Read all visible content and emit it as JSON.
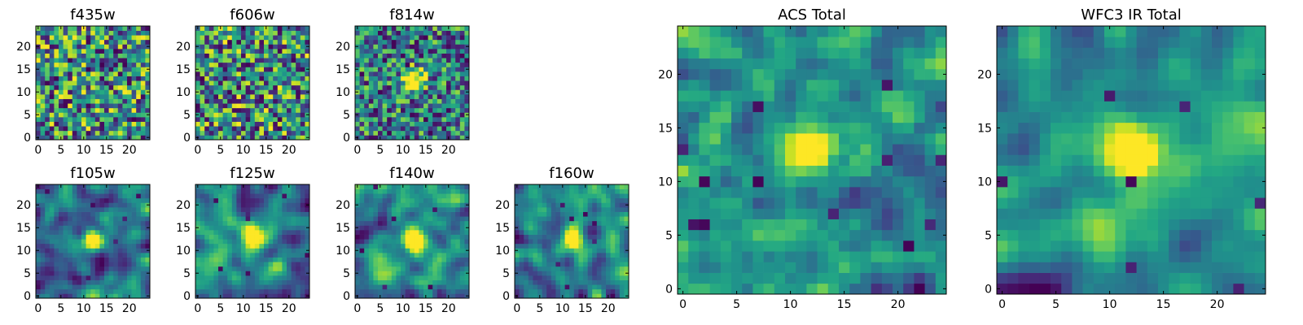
{
  "figure": {
    "colormap": "viridis",
    "colors": {
      "low": "#440154",
      "mid": "#21918c",
      "high": "#fde725"
    }
  },
  "chart_data": [
    {
      "type": "heatmap",
      "title": "f435w",
      "grid": [
        25,
        25
      ],
      "xlim": [
        0,
        24
      ],
      "ylim": [
        0,
        24
      ],
      "xticks": [
        0,
        5,
        10,
        15,
        20
      ],
      "yticks": [
        0,
        5,
        10,
        15,
        20
      ],
      "texture": "noisy",
      "bright_center": false,
      "seed": 11
    },
    {
      "type": "heatmap",
      "title": "f606w",
      "grid": [
        25,
        25
      ],
      "xlim": [
        0,
        24
      ],
      "ylim": [
        0,
        24
      ],
      "xticks": [
        0,
        5,
        10,
        15,
        20
      ],
      "yticks": [
        0,
        5,
        10,
        15,
        20
      ],
      "texture": "noisy",
      "bright_center": false,
      "seed": 23
    },
    {
      "type": "heatmap",
      "title": "f814w",
      "grid": [
        25,
        25
      ],
      "xlim": [
        0,
        24
      ],
      "ylim": [
        0,
        24
      ],
      "xticks": [
        0,
        5,
        10,
        15,
        20
      ],
      "yticks": [
        0,
        5,
        10,
        15,
        20
      ],
      "texture": "noisy",
      "bright_center": true,
      "seed": 37
    },
    {
      "type": "heatmap",
      "title": "f105w",
      "grid": [
        25,
        25
      ],
      "xlim": [
        0,
        24
      ],
      "ylim": [
        0,
        24
      ],
      "xticks": [
        0,
        5,
        10,
        15,
        20
      ],
      "yticks": [
        0,
        5,
        10,
        15,
        20
      ],
      "texture": "smooth",
      "bright_center": true,
      "seed": 41
    },
    {
      "type": "heatmap",
      "title": "f125w",
      "grid": [
        25,
        25
      ],
      "xlim": [
        0,
        24
      ],
      "ylim": [
        0,
        24
      ],
      "xticks": [
        0,
        5,
        10,
        15,
        20
      ],
      "yticks": [
        0,
        5,
        10,
        15,
        20
      ],
      "texture": "smooth",
      "bright_center": true,
      "seed": 53
    },
    {
      "type": "heatmap",
      "title": "f140w",
      "grid": [
        25,
        25
      ],
      "xlim": [
        0,
        24
      ],
      "ylim": [
        0,
        24
      ],
      "xticks": [
        0,
        5,
        10,
        15,
        20
      ],
      "yticks": [
        0,
        5,
        10,
        15,
        20
      ],
      "texture": "smooth",
      "bright_center": true,
      "seed": 67
    },
    {
      "type": "heatmap",
      "title": "f160w",
      "grid": [
        25,
        25
      ],
      "xlim": [
        0,
        24
      ],
      "ylim": [
        0,
        24
      ],
      "xticks": [
        0,
        5,
        10,
        15,
        20
      ],
      "yticks": [
        0,
        5,
        10,
        15,
        20
      ],
      "texture": "smooth",
      "bright_center": true,
      "seed": 79
    },
    {
      "type": "heatmap",
      "title": "ACS Total",
      "grid": [
        25,
        25
      ],
      "xlim": [
        0,
        24
      ],
      "ylim": [
        0,
        24
      ],
      "xticks": [
        0,
        5,
        10,
        15,
        20
      ],
      "yticks": [
        0,
        5,
        10,
        15,
        20
      ],
      "texture": "medium",
      "bright_center": true,
      "seed": 83
    },
    {
      "type": "heatmap",
      "title": "WFC3 IR Total",
      "grid": [
        25,
        25
      ],
      "xlim": [
        0,
        24
      ],
      "ylim": [
        0,
        24
      ],
      "xticks": [
        0,
        5,
        10,
        15,
        20
      ],
      "yticks": [
        0,
        5,
        10,
        15,
        20
      ],
      "texture": "smooth",
      "bright_center": true,
      "seed": 97
    }
  ]
}
